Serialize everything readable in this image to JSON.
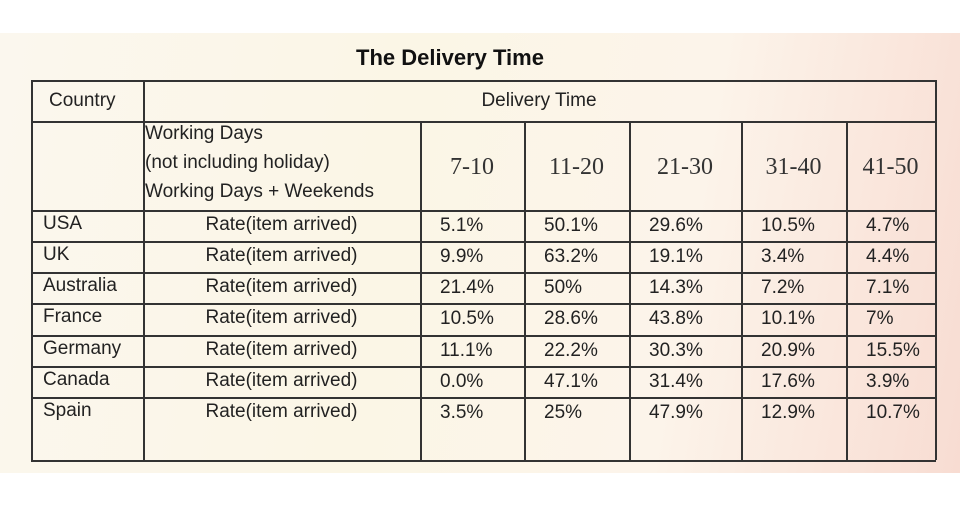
{
  "title": "The Delivery Time",
  "table": {
    "header": [
      "Country",
      "Delivery Time"
    ],
    "subheader": {
      "notes": [
        "Working Days",
        "(not including holiday)",
        "Working Days + Weekends"
      ],
      "ranges": [
        "7-10",
        "11-20",
        "21-30",
        "31-40",
        "41-50"
      ]
    },
    "rows": [
      [
        "USA",
        "Rate(item arrived)",
        "5.1%",
        "50.1%",
        "29.6%",
        "10.5%",
        "4.7%"
      ],
      [
        "UK",
        "Rate(item arrived)",
        "9.9%",
        "63.2%",
        "19.1%",
        "3.4%",
        "4.4%"
      ],
      [
        "Australia",
        "Rate(item arrived)",
        "21.4%",
        "50%",
        "14.3%",
        "7.2%",
        "7.1%"
      ],
      [
        "France",
        "Rate(item arrived)",
        "10.5%",
        "28.6%",
        "43.8%",
        "10.1%",
        "7%"
      ],
      [
        "Germany",
        "Rate(item arrived)",
        "11.1%",
        "22.2%",
        "30.3%",
        "20.9%",
        "15.5%"
      ],
      [
        "Canada",
        "Rate(item arrived)",
        "0.0%",
        "47.1%",
        "31.4%",
        "17.6%",
        "3.9%"
      ],
      [
        "Spain",
        "Rate(item arrived)",
        "3.5%",
        "25%",
        "47.9%",
        "12.9%",
        "10.7%"
      ]
    ]
  }
}
